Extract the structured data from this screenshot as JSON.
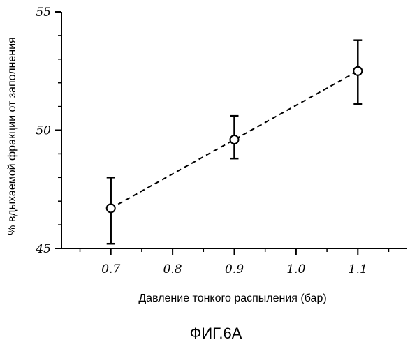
{
  "chart_data": {
    "type": "line",
    "x": [
      0.7,
      0.9,
      1.1
    ],
    "series": [
      {
        "values": [
          46.7,
          49.6,
          52.5
        ],
        "error_low": [
          45.2,
          48.8,
          51.1
        ],
        "error_high": [
          48.0,
          50.6,
          53.8
        ],
        "line_style": "dashed",
        "marker": "open-circle",
        "color": "#000000"
      }
    ],
    "xticks": [
      "0.7",
      "0.8",
      "0.9",
      "1.0",
      "1.1"
    ],
    "yticks": [
      "45",
      "50",
      "55"
    ],
    "xlabel": "Давление тонкого распыления (бар)",
    "ylabel": "% вдыхаемой фракции от заполнения",
    "xlim": [
      0.62,
      1.18
    ],
    "ylim": [
      45,
      55
    ],
    "grid": false
  },
  "caption": "ФИГ.6А"
}
